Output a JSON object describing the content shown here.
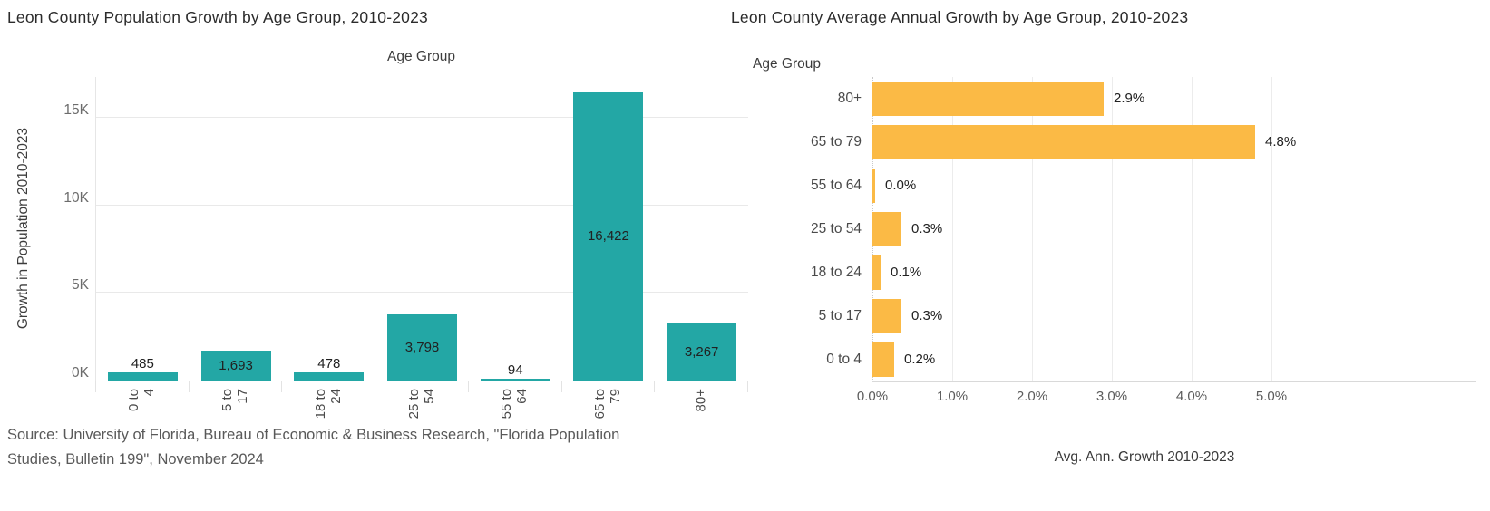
{
  "chart_data": [
    {
      "type": "bar",
      "orientation": "vertical",
      "title": "Leon County Population Growth by Age Group, 2010-2023",
      "xlabel": "Age Group",
      "ylabel": "Growth in Population 2010-2023",
      "categories": [
        "0 to 4",
        "5 to 17",
        "18 to 24",
        "25 to 54",
        "55 to 64",
        "65 to 79",
        "80+"
      ],
      "values": [
        485,
        1693,
        478,
        3798,
        94,
        16422,
        3267
      ],
      "value_labels": [
        "485",
        "1,693",
        "478",
        "3,798",
        "94",
        "16,422",
        "3,267"
      ],
      "y_ticks": [
        "0K",
        "5K",
        "10K",
        "15K"
      ],
      "y_tick_values": [
        0,
        5000,
        10000,
        15000
      ],
      "ylim": [
        0,
        17300
      ],
      "grid": true,
      "legend": "none",
      "bar_color": "#23a7a5"
    },
    {
      "type": "bar",
      "orientation": "horizontal",
      "title": "Leon County Average Annual Growth by Age Group, 2010-2023",
      "xlabel": "Avg. Ann. Growth 2010-2023",
      "ylabel": "Age Group",
      "categories": [
        "80+",
        "65 to 79",
        "55 to 64",
        "25 to 54",
        "18 to 24",
        "5 to 17",
        "0 to 4"
      ],
      "values": [
        2.9,
        4.8,
        0.0,
        0.3,
        0.1,
        0.3,
        0.2
      ],
      "value_labels": [
        "2.9%",
        "4.8%",
        "0.0%",
        "0.3%",
        "0.1%",
        "0.3%",
        "0.2%"
      ],
      "x_ticks": [
        "0.0%",
        "1.0%",
        "2.0%",
        "3.0%",
        "4.0%",
        "5.0%"
      ],
      "x_tick_values": [
        0,
        1,
        2,
        3,
        4,
        5
      ],
      "xlim": [
        0,
        5.5
      ],
      "grid": true,
      "legend": "none",
      "bar_color": "#fbba45"
    }
  ],
  "footer": {
    "source_lines": [
      "Source: University of Florida, Bureau of Economic & Business Research, \"Florida Population",
      "Studies, Bulletin 199\", November 2024"
    ]
  },
  "colors": {
    "teal": "#23a7a5",
    "orange": "#fbba45",
    "gridline": "#e9e9e9",
    "axis_line": "#d9d9d9",
    "title_text": "#2b2b2b",
    "axis_text": "#6c6c6c"
  }
}
